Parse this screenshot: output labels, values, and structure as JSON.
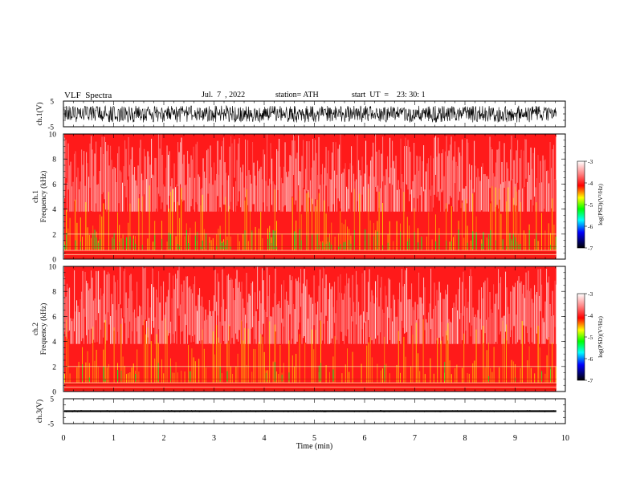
{
  "header": {
    "title": "VLF  Spectra",
    "date": "Jul.  7  , 2022",
    "station": "station= ATH",
    "start": "start  UT  =    23: 30: 1"
  },
  "chart_data": [
    {
      "type": "line",
      "panel": "waveform-ch1",
      "ylabel": "ch.1(V)",
      "ylim": [
        -5,
        5
      ],
      "yticks": [
        "5",
        "-5"
      ],
      "xlim": [
        0,
        10
      ],
      "amplitude_range": [
        -3.3,
        3.2
      ],
      "color": "#000000"
    },
    {
      "type": "heatmap",
      "panel": "spectrogram-ch1",
      "ylabel": "ch.1\nFrequency  (kHz)",
      "ylabel_lines": [
        "ch.1",
        "Frequency  (kHz)"
      ],
      "ylim": [
        0,
        10
      ],
      "yticks": [
        "0",
        "2",
        "4",
        "6",
        "8",
        "10"
      ],
      "xlim": [
        0,
        10
      ],
      "data_end_min": 9.82,
      "colorbar": {
        "label": "log(PSD)(V²/Hz)",
        "range": [
          -7,
          -3
        ],
        "ticks": [
          "-3",
          "-4",
          "-5",
          "-6",
          "-7"
        ],
        "colors": [
          "#ffffff",
          "#ff0000",
          "#ffff00",
          "#00ff00",
          "#00ffff",
          "#0000ff",
          "#000000"
        ]
      },
      "description_levels": {
        "low_band_kHz": [
          0,
          2.3
        ],
        "mid_band_kHz": [
          2.3,
          6
        ],
        "high_band_kHz": [
          6,
          10
        ]
      }
    },
    {
      "type": "heatmap",
      "panel": "spectrogram-ch2",
      "ylabel_lines": [
        "ch.2",
        "Frequency  (kHz)"
      ],
      "ylim": [
        0,
        10
      ],
      "yticks": [
        "0",
        "2",
        "4",
        "6",
        "8",
        "10"
      ],
      "xlim": [
        0,
        10
      ],
      "data_end_min": 9.82,
      "colorbar": {
        "label": "log(PSD)(V²/Hz)",
        "range": [
          -7,
          -3
        ],
        "ticks": [
          "-3",
          "-4",
          "-5",
          "-6",
          "-7"
        ]
      }
    },
    {
      "type": "line",
      "panel": "waveform-ch3",
      "ylabel": "ch.3(V)",
      "ylim": [
        -5,
        5
      ],
      "yticks": [
        "5",
        "-5"
      ],
      "xlim": [
        0,
        10
      ],
      "baseline_value": 0,
      "amplitude_range": [
        -0.3,
        0.3
      ],
      "color": "#000000",
      "xlabel": "Time  (min)",
      "xticks": [
        "0",
        "1",
        "2",
        "3",
        "4",
        "5",
        "6",
        "7",
        "8",
        "9",
        "10"
      ]
    }
  ]
}
